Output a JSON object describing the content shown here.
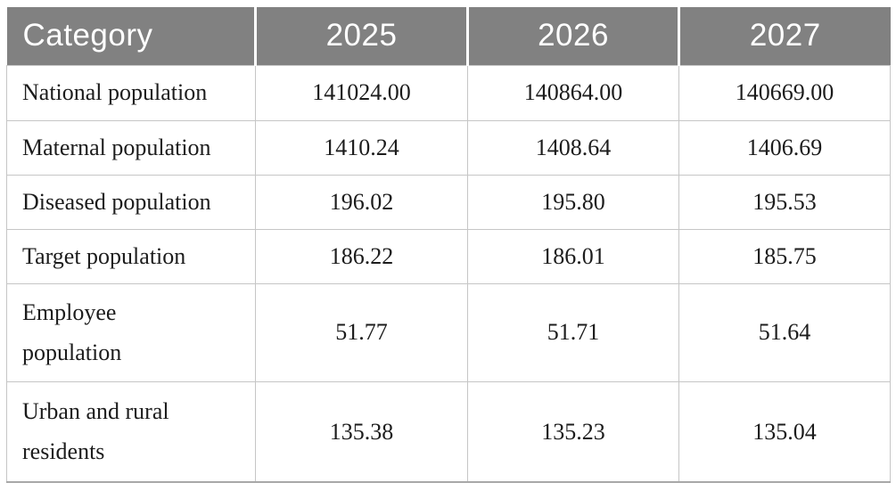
{
  "table": {
    "header": {
      "category_label": "Category",
      "years": [
        "2025",
        "2026",
        "2027"
      ]
    },
    "rows": [
      {
        "label": "National population",
        "values": [
          "141024.00",
          "140864.00",
          "140669.00"
        ]
      },
      {
        "label": "Maternal population",
        "values": [
          "1410.24",
          "1408.64",
          "1406.69"
        ]
      },
      {
        "label": "Diseased population",
        "values": [
          "196.02",
          "195.80",
          "195.53"
        ]
      },
      {
        "label": "Target population",
        "values": [
          "186.22",
          "186.01",
          "185.75"
        ]
      },
      {
        "label": "Employee\npopulation",
        "values": [
          "51.77",
          "51.71",
          "51.64"
        ]
      },
      {
        "label": "Urban and rural\nresidents",
        "values": [
          "135.38",
          "135.23",
          "135.04"
        ]
      }
    ],
    "colors": {
      "header_bg": "#818181",
      "header_text": "#ffffff",
      "body_text": "#1c1c1c",
      "grid_border": "#c6c6c6",
      "bottom_border": "#a8a8a8"
    }
  },
  "chart_data": {
    "type": "table",
    "title": "",
    "columns": [
      "Category",
      "2025",
      "2026",
      "2027"
    ],
    "rows": [
      [
        "National population",
        141024.0,
        140864.0,
        140669.0
      ],
      [
        "Maternal population",
        1410.24,
        1408.64,
        1406.69
      ],
      [
        "Diseased population",
        196.02,
        195.8,
        195.53
      ],
      [
        "Target population",
        186.22,
        186.01,
        185.75
      ],
      [
        "Employee population",
        51.77,
        51.71,
        51.64
      ],
      [
        "Urban and rural residents",
        135.38,
        135.23,
        135.04
      ]
    ]
  }
}
